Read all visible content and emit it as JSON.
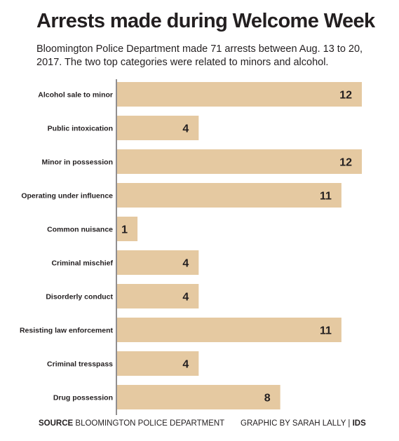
{
  "title": "Arrests made during Welcome Week",
  "subtitle": "Bloomington Police Department made 71 arrests between Aug. 13 to 20, 2017. The two top categories were related to minors and alcohol.",
  "footer": {
    "source_label": "SOURCE",
    "source_text": "BLOOMINGTON POLICE DEPARTMENT",
    "credit_text": "GRAPHIC BY SARAH LALLY",
    "credit_org": "IDS"
  },
  "chart_data": {
    "type": "bar",
    "orientation": "horizontal",
    "bar_color": "#e5c9a1",
    "categories": [
      "Alcohol sale to minor",
      "Public intoxication",
      "Minor in possession",
      "Operating under influence",
      "Common nuisance",
      "Criminal mischief",
      "Disorderly conduct",
      "Resisting law enforcement",
      "Criminal tresspass",
      "Drug possession"
    ],
    "values": [
      12,
      4,
      12,
      11,
      1,
      4,
      4,
      11,
      4,
      8
    ],
    "xlim": [
      0,
      12
    ],
    "grid": false,
    "legend": "none"
  }
}
